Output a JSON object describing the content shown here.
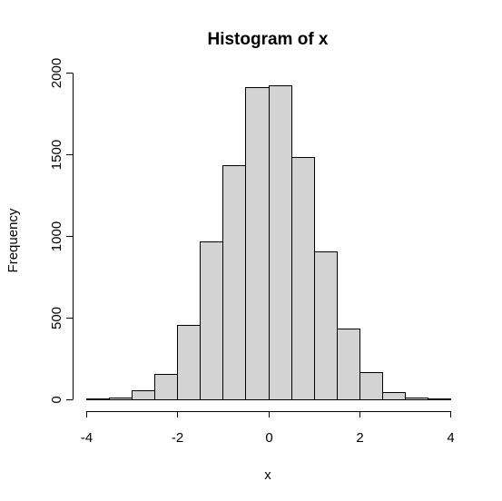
{
  "chart_data": {
    "type": "bar",
    "title": "Histogram of x",
    "xlabel": "x",
    "ylabel": "Frequency",
    "bin_edges": [
      -4,
      -3.5,
      -3,
      -2.5,
      -2,
      -1.5,
      -1,
      -0.5,
      0,
      0.5,
      1,
      1.5,
      2,
      2.5,
      3,
      3.5,
      4
    ],
    "values": [
      4,
      13,
      53,
      157,
      457,
      966,
      1435,
      1913,
      1922,
      1486,
      908,
      435,
      164,
      42,
      13,
      4
    ],
    "xlim": [
      -4,
      4
    ],
    "ylim": [
      0,
      2000
    ],
    "x_ticks": [
      -4,
      -2,
      0,
      2,
      4
    ],
    "x_tick_labels": [
      "-4",
      "-2",
      "0",
      "2",
      "4"
    ],
    "y_ticks": [
      0,
      500,
      1000,
      1500,
      2000
    ],
    "y_tick_labels": [
      "0",
      "500",
      "1000",
      "1500",
      "2000"
    ],
    "bar_color": "#d3d3d3",
    "border_color": "#000000",
    "grid": false,
    "legend": "none"
  }
}
